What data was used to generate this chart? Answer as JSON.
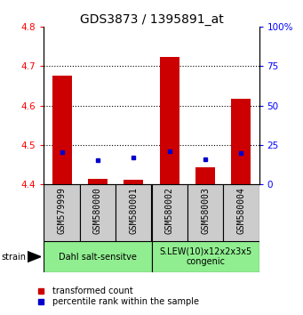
{
  "title": "GDS3873 / 1395891_at",
  "samples": [
    "GSM579999",
    "GSM580000",
    "GSM580001",
    "GSM580002",
    "GSM580003",
    "GSM580004"
  ],
  "red_values": [
    4.676,
    4.414,
    4.412,
    4.723,
    4.444,
    4.618
  ],
  "blue_values": [
    4.482,
    4.462,
    4.467,
    4.484,
    4.463,
    4.48
  ],
  "ylim_left": [
    4.4,
    4.8
  ],
  "ylim_right": [
    0,
    100
  ],
  "yticks_left": [
    4.4,
    4.5,
    4.6,
    4.7,
    4.8
  ],
  "yticks_right": [
    0,
    25,
    50,
    75,
    100
  ],
  "ytick_labels_right": [
    "0",
    "25",
    "50",
    "75",
    "100%"
  ],
  "group1_label": "Dahl salt-sensitve",
  "group2_label": "S.LEW(10)x12x2x3x5\ncongenic",
  "group_color": "#90EE90",
  "sample_box_color": "#CCCCCC",
  "base_value": 4.4,
  "red_color": "#CC0000",
  "blue_color": "#0000CC",
  "legend_red_label": "transformed count",
  "legend_blue_label": "percentile rank within the sample",
  "strain_label": "strain",
  "title_fontsize": 10,
  "tick_fontsize": 7.5,
  "sample_fontsize": 7,
  "group_fontsize": 7,
  "legend_fontsize": 7
}
